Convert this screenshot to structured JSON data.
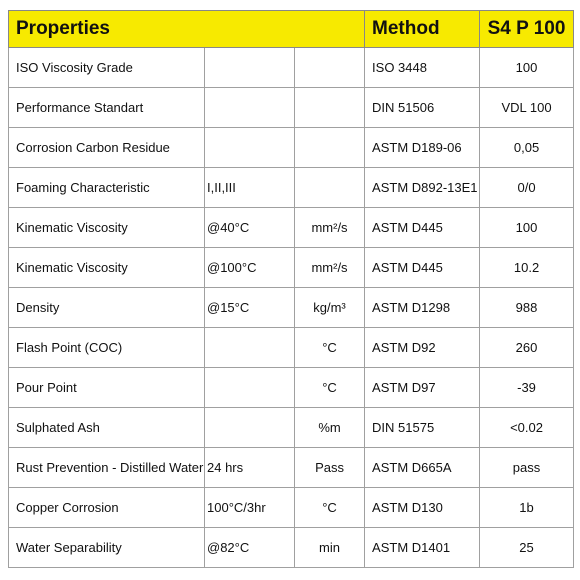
{
  "table": {
    "header": [
      "Properties",
      "Method",
      "S4 P 100"
    ],
    "rows": [
      [
        "ISO Viscosity Grade",
        null,
        null,
        "ISO 3448",
        "100"
      ],
      [
        "Performance Standart",
        null,
        null,
        "DIN 51506",
        "VDL 100"
      ],
      [
        "Corrosion Carbon Residue",
        null,
        null,
        "ASTM D189-06",
        "0,05"
      ],
      [
        "Foaming Characteristic",
        "I,II,III",
        null,
        "ASTM D892-13E1",
        "0/0"
      ],
      [
        "Kinematic Viscosity",
        "@40°C",
        "mm²/s",
        "ASTM D445",
        "100"
      ],
      [
        "Kinematic Viscosity",
        "@100°C",
        "mm²/s",
        "ASTM D445",
        "10.2"
      ],
      [
        "Density",
        "@15°C",
        "kg/m³",
        "ASTM D1298",
        "988"
      ],
      [
        "Flash Point (COC)",
        null,
        "°C",
        "ASTM D92",
        "260"
      ],
      [
        "Pour Point",
        null,
        "°C",
        "ASTM D97",
        "-39"
      ],
      [
        "Sulphated Ash",
        null,
        "%m",
        "DIN 51575",
        "<0.02"
      ],
      [
        "Rust Prevention - Distilled Water",
        "24 hrs",
        "Pass",
        "ASTM D665A",
        "pass"
      ],
      [
        "Copper Corrosion",
        "100°C/3hr",
        "°C",
        "ASTM D130",
        "1b"
      ],
      [
        "Water Separability",
        "@82°C",
        "min",
        "ASTM D1401",
        "25"
      ]
    ]
  }
}
